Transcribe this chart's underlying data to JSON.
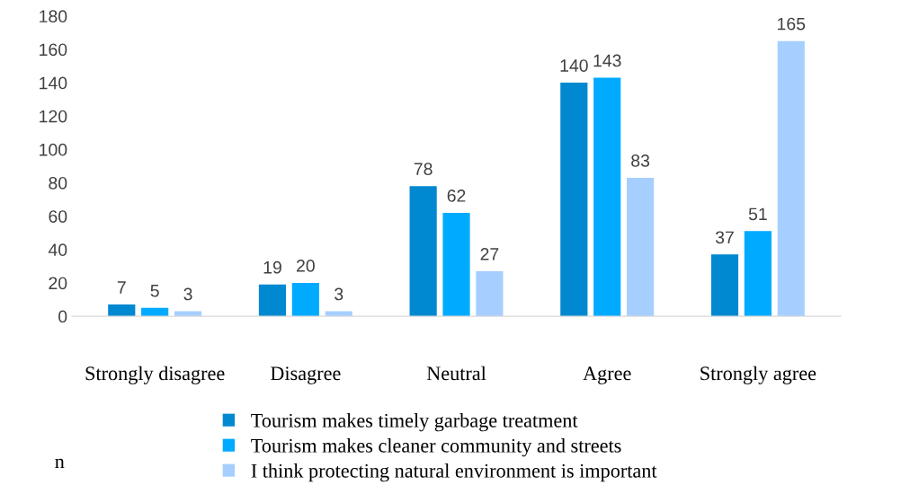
{
  "chart_data": {
    "type": "bar",
    "categories": [
      "Strongly disagree",
      "Disagree",
      "Neutral",
      "Agree",
      "Strongly agree"
    ],
    "series": [
      {
        "name": "Tourism makes timely garbage treatment",
        "color": "#0088d1",
        "values": [
          7,
          19,
          78,
          140,
          37
        ]
      },
      {
        "name": "Tourism makes cleaner community and streets",
        "color": "#00aaff",
        "values": [
          5,
          20,
          62,
          143,
          51
        ]
      },
      {
        "name": "I think protecting natural environment is important",
        "color": "#a6cfff",
        "values": [
          3,
          3,
          27,
          83,
          165
        ]
      }
    ],
    "ylim": [
      0,
      180
    ],
    "yticks": [
      0,
      20,
      40,
      60,
      80,
      100,
      120,
      140,
      160,
      180
    ],
    "data_labels": true,
    "grid": false,
    "legend": "bottom",
    "annotations": [
      "n"
    ]
  }
}
